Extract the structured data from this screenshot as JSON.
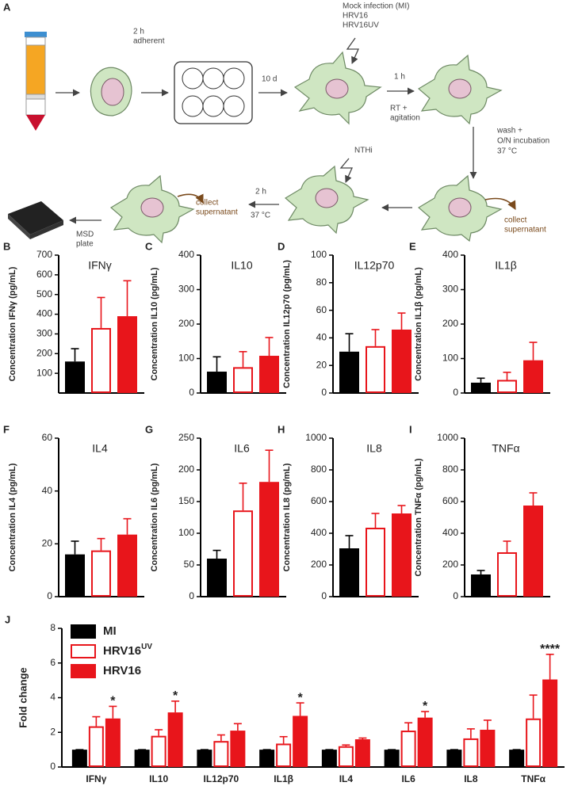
{
  "schematic": {
    "panel": "A",
    "step_adherent": [
      "2 h",
      "adherent"
    ],
    "step_culture": "10 d",
    "infection": [
      "Mock infection (MI)",
      "HRV16",
      "HRV16UV"
    ],
    "step_infect_time": "1 h",
    "step_infect_cond": [
      "RT +",
      "agitation"
    ],
    "step_wash": [
      "wash +",
      "O/N incubation",
      "37 °C"
    ],
    "collect_1": [
      "collect",
      "supernatant"
    ],
    "bacteria": "NTHi",
    "step_bact_time": "2 h",
    "step_bact_temp": "37 °C",
    "collect_2": [
      "collect",
      "supernatant"
    ],
    "msd": [
      "MSD",
      "plate"
    ]
  },
  "chart_data": [
    {
      "panel": "B",
      "type": "bar",
      "title": "IFNγ",
      "ylabel": "Concentration IFNγ (pg/mL)",
      "values": [
        160,
        330,
        390
      ],
      "errors": [
        65,
        155,
        180
      ],
      "colors": [
        "#000000",
        "#ffffff",
        "#e8151b"
      ],
      "edge_colors": [
        "#000000",
        "#e8151b",
        "#e8151b"
      ],
      "ylim": [
        0,
        700
      ],
      "yticks": [
        100,
        200,
        300,
        400,
        500,
        600,
        700
      ]
    },
    {
      "panel": "C",
      "type": "bar",
      "title": "IL10",
      "ylabel": "Concentration IL10 (pg/mL)",
      "values": [
        62,
        75,
        108
      ],
      "errors": [
        43,
        45,
        53
      ],
      "colors": [
        "#000000",
        "#ffffff",
        "#e8151b"
      ],
      "edge_colors": [
        "#000000",
        "#e8151b",
        "#e8151b"
      ],
      "ylim": [
        0,
        400
      ],
      "yticks": [
        0,
        100,
        200,
        300,
        400
      ]
    },
    {
      "panel": "D",
      "type": "bar",
      "title": "IL12p70",
      "ylabel": "Concentration IL12p70 (pg/mL)",
      "values": [
        30,
        34,
        46
      ],
      "errors": [
        13,
        12,
        12
      ],
      "colors": [
        "#000000",
        "#ffffff",
        "#e8151b"
      ],
      "edge_colors": [
        "#000000",
        "#e8151b",
        "#e8151b"
      ],
      "ylim": [
        0,
        100
      ],
      "yticks": [
        0,
        20,
        40,
        60,
        80,
        100
      ]
    },
    {
      "panel": "E",
      "type": "bar",
      "title": "IL1β",
      "ylabel": "Concentration IL1β (pg/mL)",
      "values": [
        30,
        38,
        95
      ],
      "errors": [
        13,
        22,
        52
      ],
      "colors": [
        "#000000",
        "#ffffff",
        "#e8151b"
      ],
      "edge_colors": [
        "#000000",
        "#e8151b",
        "#e8151b"
      ],
      "ylim": [
        0,
        400
      ],
      "yticks": [
        0,
        100,
        200,
        300,
        400
      ]
    },
    {
      "panel": "F",
      "type": "bar",
      "title": "IL4",
      "ylabel": "Concentration IL4 (pg/mL)",
      "values": [
        16,
        17.5,
        23.5
      ],
      "errors": [
        5,
        4.5,
        6
      ],
      "colors": [
        "#000000",
        "#ffffff",
        "#e8151b"
      ],
      "edge_colors": [
        "#000000",
        "#e8151b",
        "#e8151b"
      ],
      "ylim": [
        0,
        60
      ],
      "yticks": [
        0,
        20,
        40,
        60
      ]
    },
    {
      "panel": "G",
      "type": "bar",
      "title": "IL6",
      "ylabel": "Concentration IL6 (pg/mL)",
      "values": [
        60,
        136,
        181
      ],
      "errors": [
        13,
        43,
        50
      ],
      "colors": [
        "#000000",
        "#ffffff",
        "#e8151b"
      ],
      "edge_colors": [
        "#000000",
        "#e8151b",
        "#e8151b"
      ],
      "ylim": [
        0,
        250
      ],
      "yticks": [
        0,
        50,
        100,
        150,
        200,
        250
      ]
    },
    {
      "panel": "H",
      "type": "bar",
      "title": "IL8",
      "ylabel": "Concentration IL8 (pg/mL)",
      "values": [
        305,
        435,
        525
      ],
      "errors": [
        80,
        90,
        50
      ],
      "colors": [
        "#000000",
        "#ffffff",
        "#e8151b"
      ],
      "edge_colors": [
        "#000000",
        "#e8151b",
        "#e8151b"
      ],
      "ylim": [
        0,
        1000
      ],
      "yticks": [
        0,
        200,
        400,
        600,
        800,
        1000
      ]
    },
    {
      "panel": "I",
      "type": "bar",
      "title": "TNFα",
      "ylabel": "Concentration TNFα (pg/mL)",
      "values": [
        140,
        280,
        575
      ],
      "errors": [
        25,
        70,
        80
      ],
      "colors": [
        "#000000",
        "#ffffff",
        "#e8151b"
      ],
      "edge_colors": [
        "#000000",
        "#e8151b",
        "#e8151b"
      ],
      "ylim": [
        0,
        1000
      ],
      "yticks": [
        0,
        200,
        400,
        600,
        800,
        1000
      ]
    },
    {
      "panel": "J",
      "type": "grouped_bar",
      "ylabel": "Fold change",
      "categories": [
        "IFNγ",
        "IL10",
        "IL12p70",
        "IL1β",
        "IL4",
        "IL6",
        "IL8",
        "TNFα"
      ],
      "series": [
        {
          "name": "MI",
          "color": "#000000",
          "edge_color": "#000000",
          "values": [
            1,
            1,
            1,
            1,
            1,
            1,
            1,
            1
          ],
          "errors": [
            0,
            0,
            0,
            0,
            0,
            0,
            0,
            0
          ]
        },
        {
          "name": "HRV16",
          "name_sup": "UV",
          "color": "#ffffff",
          "edge_color": "#e8151b",
          "values": [
            2.35,
            1.8,
            1.5,
            1.35,
            1.2,
            2.1,
            1.65,
            2.8
          ],
          "errors": [
            0.55,
            0.35,
            0.35,
            0.4,
            0.07,
            0.45,
            0.55,
            1.35
          ]
        },
        {
          "name": "HRV16",
          "color": "#e8151b",
          "edge_color": "#e8151b",
          "values": [
            2.8,
            3.15,
            2.1,
            2.95,
            1.6,
            2.85,
            2.15,
            5.05
          ],
          "errors": [
            0.7,
            0.65,
            0.4,
            0.75,
            0.07,
            0.35,
            0.55,
            1.45
          ],
          "annotations": [
            "*",
            "*",
            null,
            "*",
            null,
            "*",
            null,
            "****"
          ]
        }
      ],
      "ylim": [
        0,
        8
      ],
      "yticks": [
        0,
        2,
        4,
        6,
        8
      ],
      "legend": "upper left"
    }
  ]
}
